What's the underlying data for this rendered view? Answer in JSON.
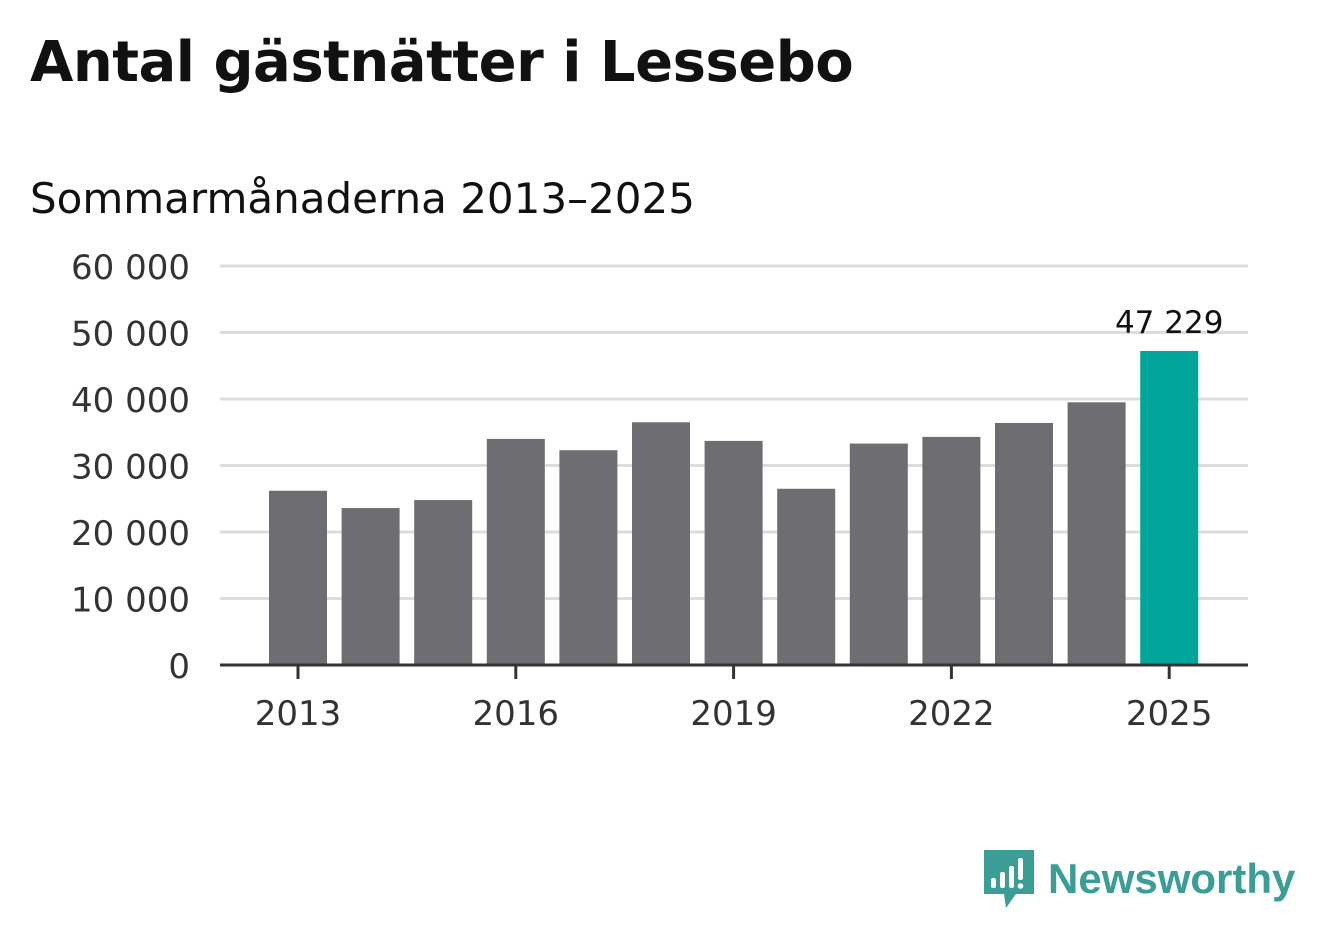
{
  "chart_data": {
    "type": "bar",
    "title": "Antal gästnätter i Lessebo",
    "subtitle": "Sommarmånaderna 2013–2025",
    "categories": [
      "2013",
      "2014",
      "2015",
      "2016",
      "2017",
      "2018",
      "2019",
      "2020",
      "2021",
      "2022",
      "2023",
      "2024",
      "2025"
    ],
    "values": [
      26200,
      23600,
      24800,
      34000,
      32300,
      36500,
      33700,
      26500,
      33300,
      34300,
      36400,
      39500,
      47229
    ],
    "ylim": [
      0,
      60000
    ],
    "yticks": [
      0,
      10000,
      20000,
      30000,
      40000,
      50000,
      60000
    ],
    "ytick_labels": [
      "0",
      "10 000",
      "20 000",
      "30 000",
      "40 000",
      "50 000",
      "60 000"
    ],
    "xtick_labels": [
      "2013",
      "2016",
      "2019",
      "2022",
      "2025"
    ],
    "annotation": {
      "category": "2025",
      "label": "47 229"
    },
    "colors": {
      "bar": "#6e6d72",
      "highlight": "#00a699",
      "grid": "#dddddd",
      "axis": "#333333"
    },
    "grid": true
  },
  "brand": {
    "name": "Newsworthy",
    "color": "#3a9d96"
  }
}
